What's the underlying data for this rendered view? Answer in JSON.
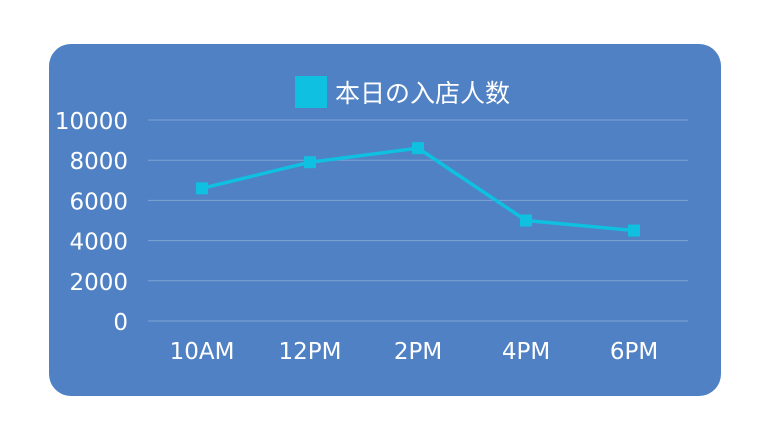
{
  "chart_data": {
    "type": "line",
    "title": "",
    "xlabel": "",
    "ylabel": "",
    "categories": [
      "10AM",
      "12PM",
      "2PM",
      "4PM",
      "6PM"
    ],
    "series": [
      {
        "name": "本日の入店人数",
        "values": [
          6600,
          7900,
          8600,
          5000,
          4500
        ],
        "color": "#0fc0e0"
      }
    ],
    "ylim": [
      0,
      10000
    ],
    "yticks": [
      0,
      2000,
      4000,
      6000,
      8000,
      10000
    ],
    "grid": true,
    "legend_position": "top-center",
    "background_color": "#4f81c4"
  }
}
